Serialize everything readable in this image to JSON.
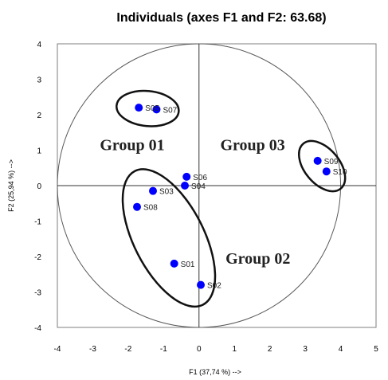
{
  "chart_data": {
    "type": "scatter",
    "title": "Individuals (axes F1 and F2: 63.68)",
    "xlabel": "F1 (37,74 %) -->",
    "ylabel": "F2 (25,94 %) -->",
    "xlim": [
      -4,
      5
    ],
    "ylim": [
      -4,
      4
    ],
    "xticks": [
      "-4",
      "-3",
      "-2",
      "-1",
      "0",
      "1",
      "2",
      "3",
      "4",
      "5"
    ],
    "yticks": [
      "4",
      "3",
      "2",
      "1",
      "0",
      "-1",
      "-2",
      "-3",
      "-4"
    ],
    "grid": false,
    "point_color": "#0000ff",
    "points": [
      {
        "label": "S01",
        "x": -0.7,
        "y": -2.2
      },
      {
        "label": "S02",
        "x": 0.05,
        "y": -2.8
      },
      {
        "label": "S03",
        "x": -1.3,
        "y": -0.15
      },
      {
        "label": "S04",
        "x": -0.4,
        "y": 0.0
      },
      {
        "label": "S05",
        "x": -1.7,
        "y": 2.2
      },
      {
        "label": "S06",
        "x": -0.35,
        "y": 0.25
      },
      {
        "label": "S07",
        "x": -1.2,
        "y": 2.15
      },
      {
        "label": "S08",
        "x": -1.75,
        "y": -0.6
      },
      {
        "label": "S09",
        "x": 3.35,
        "y": 0.7
      },
      {
        "label": "S10",
        "x": 3.6,
        "y": 0.4
      }
    ],
    "groups": [
      {
        "label": "Group  01",
        "members": [
          "S05",
          "S07"
        ]
      },
      {
        "label": "Group  02",
        "members": [
          "S01",
          "S02",
          "S03",
          "S08"
        ]
      },
      {
        "label": "Group 03",
        "members": [
          "S09",
          "S10"
        ]
      }
    ]
  }
}
